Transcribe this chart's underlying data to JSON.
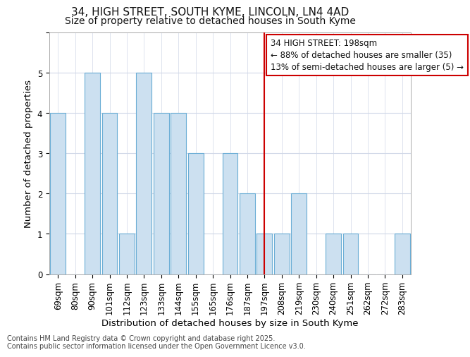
{
  "title_line1": "34, HIGH STREET, SOUTH KYME, LINCOLN, LN4 4AD",
  "title_line2": "Size of property relative to detached houses in South Kyme",
  "xlabel": "Distribution of detached houses by size in South Kyme",
  "ylabel": "Number of detached properties",
  "categories": [
    "69sqm",
    "80sqm",
    "90sqm",
    "101sqm",
    "112sqm",
    "123sqm",
    "133sqm",
    "144sqm",
    "155sqm",
    "165sqm",
    "176sqm",
    "187sqm",
    "197sqm",
    "208sqm",
    "219sqm",
    "230sqm",
    "240sqm",
    "251sqm",
    "262sqm",
    "272sqm",
    "283sqm"
  ],
  "values": [
    4,
    0,
    5,
    4,
    1,
    5,
    4,
    4,
    3,
    0,
    3,
    2,
    1,
    1,
    2,
    0,
    1,
    1,
    0,
    0,
    1
  ],
  "bar_color": "#cce0f0",
  "bar_edge_color": "#6aadd5",
  "marker_index": 12,
  "marker_color": "#cc0000",
  "annotation_text": "34 HIGH STREET: 198sqm\n← 88% of detached houses are smaller (35)\n13% of semi-detached houses are larger (5) →",
  "annotation_box_color": "#ffffff",
  "annotation_box_edge": "#cc0000",
  "ylim": [
    0,
    6
  ],
  "yticks": [
    0,
    1,
    2,
    3,
    4,
    5,
    6
  ],
  "fig_bg": "#ffffff",
  "axes_bg": "#ffffff",
  "grid_color": "#d0d8e8",
  "footer_text": "Contains HM Land Registry data © Crown copyright and database right 2025.\nContains public sector information licensed under the Open Government Licence v3.0.",
  "title_fontsize": 11,
  "subtitle_fontsize": 10,
  "axis_label_fontsize": 9.5,
  "tick_fontsize": 8.5,
  "annotation_fontsize": 8.5,
  "footer_fontsize": 7
}
